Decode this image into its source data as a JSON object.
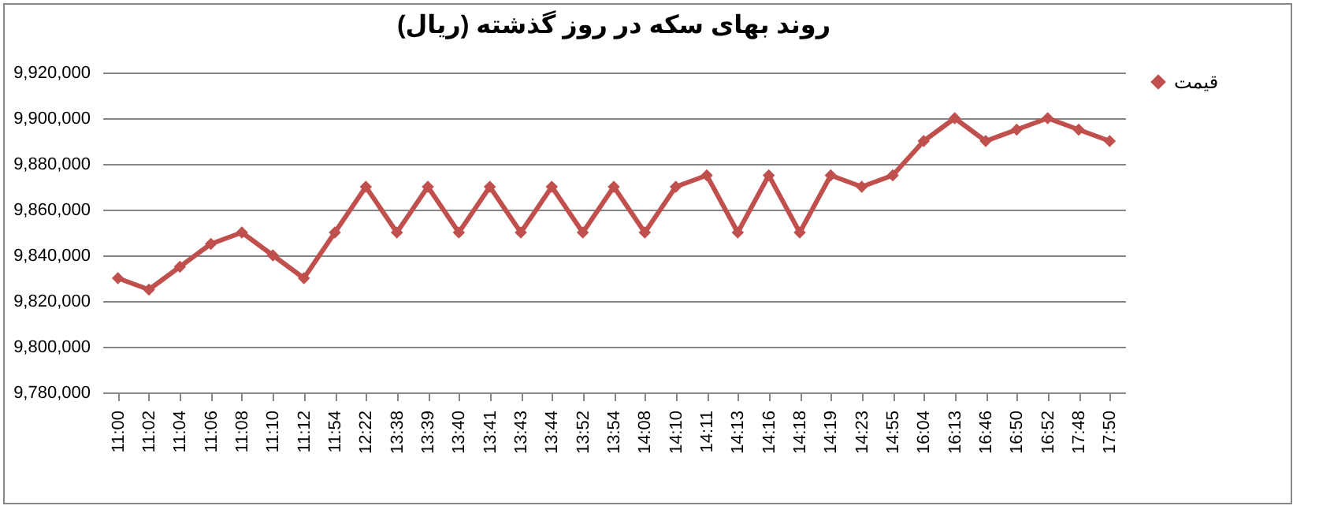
{
  "chart_data": {
    "type": "line",
    "title": "روند بهای سکه در روز گذشته (ریال)",
    "categories": [
      "11:00",
      "11:02",
      "11:04",
      "11:06",
      "11:08",
      "11:10",
      "11:12",
      "11:54",
      "12:22",
      "13:38",
      "13:39",
      "13:40",
      "13:41",
      "13:43",
      "13:44",
      "13:52",
      "13:54",
      "14:08",
      "14:10",
      "14:11",
      "14:13",
      "14:16",
      "14:18",
      "14:19",
      "14:23",
      "14:55",
      "16:04",
      "16:13",
      "16:46",
      "16:50",
      "16:52",
      "17:48",
      "17:50"
    ],
    "series": [
      {
        "name": "قیمت",
        "color": "#c0504d",
        "values": [
          9830000,
          9825000,
          9835000,
          9845000,
          9850000,
          9840000,
          9830000,
          9850000,
          9870000,
          9850000,
          9870000,
          9850000,
          9870000,
          9850000,
          9870000,
          9850000,
          9870000,
          9850000,
          9870000,
          9875000,
          9850000,
          9875000,
          9850000,
          9875000,
          9870000,
          9875000,
          9890000,
          9900000,
          9890000,
          9895000,
          9900000,
          9895000,
          9890000
        ]
      }
    ],
    "ylim": [
      9780000,
      9920000
    ],
    "yticks": [
      {
        "value": 9780000,
        "label": "9,780,000"
      },
      {
        "value": 9800000,
        "label": "9,800,000"
      },
      {
        "value": 9820000,
        "label": "9,820,000"
      },
      {
        "value": 9840000,
        "label": "9,840,000"
      },
      {
        "value": 9860000,
        "label": "9,860,000"
      },
      {
        "value": 9880000,
        "label": "9,880,000"
      },
      {
        "value": 9900000,
        "label": "9,900,000"
      },
      {
        "value": 9920000,
        "label": "9,920,000"
      }
    ],
    "grid": "y",
    "legend": "right",
    "marker": "diamond",
    "line_style": "solid"
  }
}
